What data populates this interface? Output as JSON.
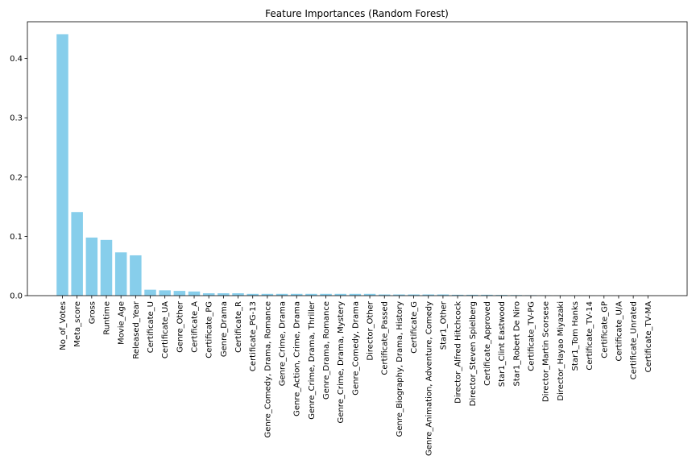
{
  "chart_data": {
    "type": "bar",
    "title": "Feature Importances (Random Forest)",
    "xlabel": "",
    "ylabel": "",
    "ylim": [
      0,
      0.462
    ],
    "yticks": [
      0.0,
      0.1,
      0.2,
      0.3,
      0.4
    ],
    "ytick_labels": [
      "0.0",
      "0.1",
      "0.2",
      "0.3",
      "0.4"
    ],
    "bar_color": "#87ceeb",
    "grid": false,
    "categories": [
      "No_of_Votes",
      "Meta_score",
      "Gross",
      "Runtime",
      "Movie_Age",
      "Released_Year",
      "Certificate_U",
      "Certificate_UA",
      "Genre_Other",
      "Certificate_A",
      "Certificate_PG",
      "Genre_Drama",
      "Certificate_R",
      "Certificate_PG-13",
      "Genre_Comedy, Drama, Romance",
      "Genre_Crime, Drama",
      "Genre_Action, Crime, Drama",
      "Genre_Crime, Drama, Thriller",
      "Genre_Drama, Romance",
      "Genre_Crime, Drama, Mystery",
      "Genre_Comedy, Drama",
      "Director_Other",
      "Certificate_Passed",
      "Genre_Biography, Drama, History",
      "Certificate_G",
      "Genre_Animation, Adventure, Comedy",
      "Star1_Other",
      "Director_Alfred Hitchcock",
      "Director_Steven Spielberg",
      "Certificate_Approved",
      "Star1_Clint Eastwood",
      "Star1_Robert De Niro",
      "Certificate_TV-PG",
      "Director_Martin Scorsese",
      "Director_Hayao Miyazaki",
      "Star1_Tom Hanks",
      "Certificate_TV-14",
      "Certificate_GP",
      "Certificate_U/A",
      "Certificate_Unrated",
      "Certificate_TV-MA"
    ],
    "values": [
      0.441,
      0.141,
      0.098,
      0.094,
      0.073,
      0.068,
      0.01,
      0.009,
      0.008,
      0.007,
      0.004,
      0.004,
      0.004,
      0.003,
      0.003,
      0.003,
      0.003,
      0.003,
      0.003,
      0.003,
      0.003,
      0.003,
      0.002,
      0.002,
      0.002,
      0.002,
      0.002,
      0.0015,
      0.0015,
      0.0015,
      0.0012,
      0.001,
      0.0008,
      0.0006,
      0.0005,
      0.0004,
      0.0003,
      0.0002,
      0.0001,
      0.0001,
      5e-05
    ]
  }
}
